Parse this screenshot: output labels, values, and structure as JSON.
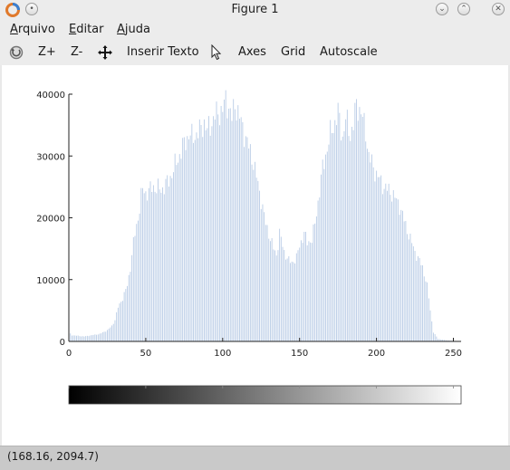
{
  "window": {
    "title": "Figure 1",
    "app_icon": "octave-logo-icon"
  },
  "menu": {
    "items": [
      {
        "label": "Arquivo"
      },
      {
        "label": "Editar"
      },
      {
        "label": "Ajuda"
      }
    ]
  },
  "toolbar": {
    "rotate_icon": "rotate-icon",
    "zoom_in": "Z+",
    "zoom_out": "Z-",
    "pan_icon": "pan-icon",
    "insert_text": "Inserir Texto",
    "select_icon": "pointer-icon",
    "axes": "Axes",
    "grid": "Grid",
    "autoscale": "Autoscale"
  },
  "status": {
    "coords": "(168.16, 2094.7)"
  },
  "chart_data": {
    "type": "bar",
    "title": "",
    "xlabel": "",
    "ylabel": "",
    "xlim": [
      0,
      255
    ],
    "ylim": [
      0,
      40000
    ],
    "xticks": [
      0,
      50,
      100,
      150,
      200,
      250
    ],
    "yticks": [
      0,
      10000,
      20000,
      30000,
      40000
    ],
    "bar_color": "#b9cce6",
    "colorbar": {
      "type": "grayscale",
      "range": [
        0,
        255
      ]
    },
    "keypoints": {
      "x": [
        0,
        2,
        10,
        20,
        25,
        28,
        30,
        32,
        35,
        38,
        40,
        42,
        45,
        47,
        48,
        50,
        55,
        60,
        65,
        70,
        75,
        78,
        80,
        85,
        88,
        90,
        95,
        100,
        102,
        104,
        106,
        108,
        110,
        115,
        120,
        125,
        128,
        130,
        133,
        135,
        137,
        140,
        143,
        145,
        148,
        150,
        153,
        155,
        158,
        160,
        165,
        170,
        173,
        175,
        178,
        180,
        183,
        185,
        187,
        190,
        193,
        195,
        200,
        205,
        210,
        215,
        220,
        225,
        230,
        233,
        235,
        237,
        240,
        245,
        250,
        255
      ],
      "values": [
        1500,
        1000,
        800,
        1200,
        1800,
        2500,
        3500,
        5500,
        7000,
        9000,
        12000,
        16000,
        20000,
        23500,
        24500,
        24000,
        25000,
        24500,
        26000,
        29000,
        32000,
        33500,
        33000,
        34000,
        35500,
        34000,
        36500,
        37500,
        39000,
        38000,
        36000,
        38500,
        37000,
        33000,
        29000,
        23000,
        19000,
        17500,
        15000,
        14000,
        17500,
        14500,
        13000,
        12800,
        13500,
        15500,
        17500,
        16000,
        16500,
        19000,
        28000,
        33500,
        35500,
        37000,
        33000,
        36000,
        33500,
        35000,
        38500,
        37000,
        34000,
        30000,
        27000,
        25000,
        24000,
        22000,
        18000,
        14500,
        12000,
        9000,
        5000,
        1500,
        400,
        200,
        100,
        50
      ]
    }
  }
}
